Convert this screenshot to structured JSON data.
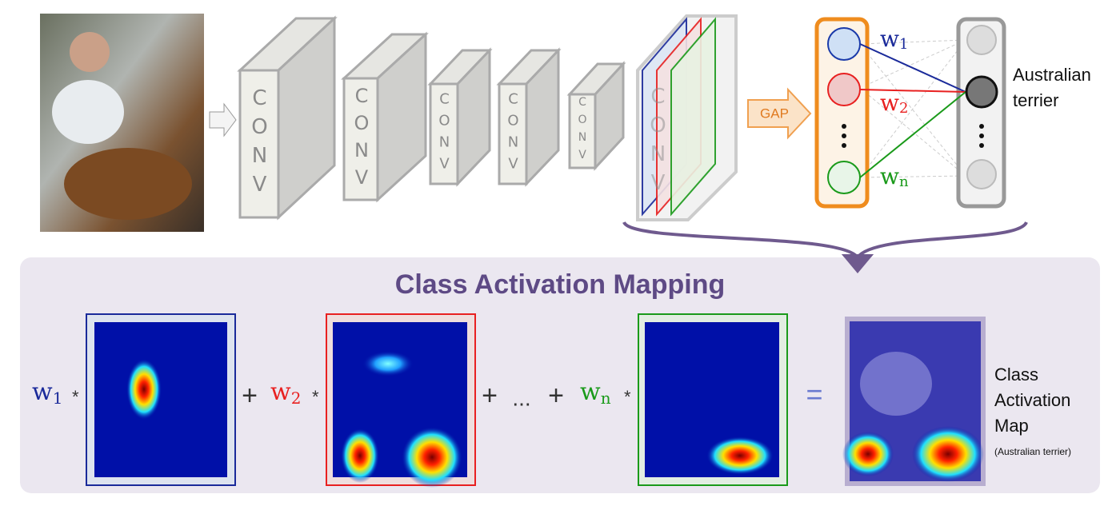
{
  "cnn": {
    "layers": [
      "CONV",
      "CONV",
      "CONV",
      "CONV",
      "CONV",
      "CONV"
    ],
    "gap": "GAP",
    "weights": [
      {
        "symbol": "w",
        "index": "1"
      },
      {
        "symbol": "w",
        "index": "2"
      },
      {
        "symbol": "w",
        "index": "n"
      }
    ],
    "output_label": [
      "Australian",
      "terrier"
    ]
  },
  "cam": {
    "title": "Class Activation Mapping",
    "equation": [
      {
        "symbol": "w",
        "index": "1"
      },
      "*",
      "+",
      {
        "symbol": "w",
        "index": "2"
      },
      "*",
      "+",
      "...",
      "+",
      {
        "symbol": "w",
        "index": "n"
      },
      "*",
      "="
    ],
    "result_label": [
      "Class",
      "Activation",
      "Map"
    ],
    "result_note": "(Australian terrier)"
  }
}
